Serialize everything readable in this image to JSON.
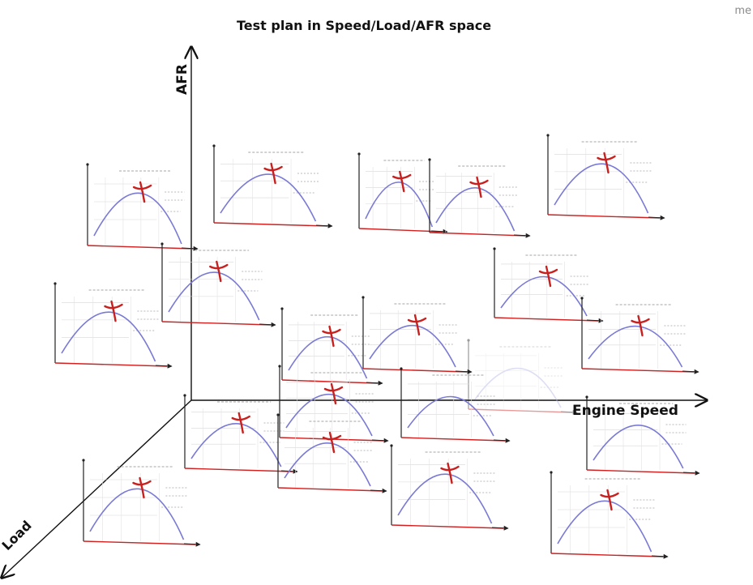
{
  "title": "Test plan in Speed/Load/AFR space",
  "corner_text": "me",
  "axes": {
    "afr": "AFR",
    "speed": "Engine Speed",
    "load": "Load"
  },
  "colors": {
    "curve": "#7a7ad6",
    "marker": "#c8201e",
    "baseline": "#d12020",
    "axis": "#111111",
    "faded_curve": "#b6b6e8"
  },
  "panel_count": 20,
  "panels_with_optimum_marker": 17,
  "panels_without_marker": 3
}
